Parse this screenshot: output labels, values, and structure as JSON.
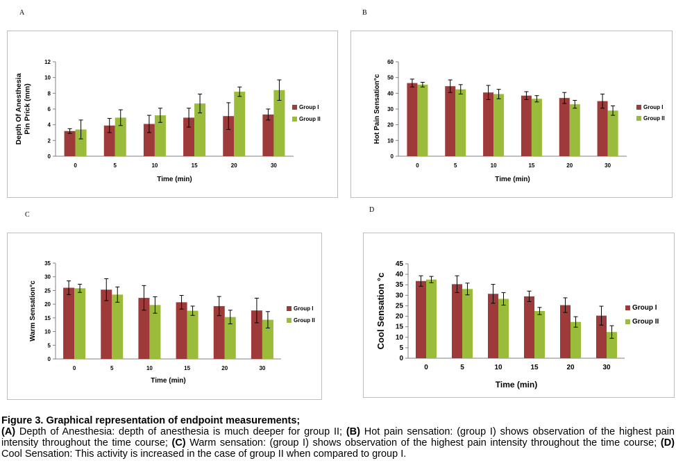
{
  "chart_data": [
    {
      "panel": "A",
      "type": "bar",
      "xlabel": "Time (min)",
      "ylabel_lines": [
        "Depth Of Anesthesia",
        "Pin Prick (mm)"
      ],
      "categories": [
        "0",
        "5",
        "10",
        "15",
        "20",
        "30"
      ],
      "ylim": [
        0,
        12
      ],
      "yticks": [
        0,
        2,
        4,
        6,
        8,
        10,
        12
      ],
      "legend_position": "right",
      "series": [
        {
          "name": "Group I",
          "color": "#9e3a3a",
          "values": [
            3.2,
            3.9,
            4.1,
            4.9,
            5.1,
            5.3
          ],
          "errors": [
            0.3,
            0.9,
            1.1,
            1.2,
            1.7,
            0.7
          ]
        },
        {
          "name": "Group II",
          "color": "#9bbb3a",
          "values": [
            3.4,
            4.9,
            5.2,
            6.7,
            8.2,
            8.4
          ],
          "errors": [
            1.2,
            1.0,
            0.9,
            1.2,
            0.6,
            1.3
          ]
        }
      ]
    },
    {
      "panel": "B",
      "type": "bar",
      "xlabel": "Time (min)",
      "ylabel_lines": [
        "Hot Pain Sensation°c"
      ],
      "categories": [
        "0",
        "5",
        "10",
        "15",
        "20",
        "30"
      ],
      "ylim": [
        0,
        60
      ],
      "yticks": [
        0,
        10,
        20,
        30,
        40,
        50,
        60
      ],
      "legend_position": "right",
      "series": [
        {
          "name": "Group I",
          "color": "#9e3a3a",
          "values": [
            46.5,
            44.5,
            40.5,
            38.5,
            37,
            35
          ],
          "errors": [
            2.5,
            4,
            4.5,
            2.5,
            3.5,
            4.5
          ]
        },
        {
          "name": "Group II",
          "color": "#9bbb3a",
          "values": [
            45.5,
            42.5,
            39.5,
            36.5,
            33,
            29
          ],
          "errors": [
            1.5,
            3,
            3,
            2,
            2.5,
            3
          ]
        }
      ]
    },
    {
      "panel": "C",
      "type": "bar",
      "xlabel": "Time (min)",
      "ylabel_lines": [
        "Warm Sensation°c"
      ],
      "categories": [
        "0",
        "5",
        "10",
        "15",
        "20",
        "30"
      ],
      "ylim": [
        0,
        35
      ],
      "yticks": [
        0,
        5,
        10,
        15,
        20,
        25,
        30,
        35
      ],
      "legend_position": "right",
      "series": [
        {
          "name": "Group I",
          "color": "#9e3a3a",
          "values": [
            26,
            25.3,
            22.3,
            20.7,
            19.3,
            17.7
          ],
          "errors": [
            2.5,
            4,
            4.5,
            2.5,
            3.5,
            4.5
          ]
        },
        {
          "name": "Group II",
          "color": "#9bbb3a",
          "values": [
            25.8,
            23.5,
            19.7,
            17.6,
            15.3,
            14.3
          ],
          "errors": [
            1.5,
            2.8,
            3,
            1.7,
            2.5,
            3
          ]
        }
      ]
    },
    {
      "panel": "D",
      "type": "bar",
      "xlabel": "Time (min)",
      "ylabel_lines": [
        "Cool Sensation °c"
      ],
      "categories": [
        "0",
        "5",
        "10",
        "15",
        "20",
        "30"
      ],
      "ylim": [
        0,
        45
      ],
      "yticks": [
        0,
        5,
        10,
        15,
        20,
        25,
        30,
        35,
        40,
        45
      ],
      "legend_position": "right",
      "series": [
        {
          "name": "Group I",
          "color": "#9e3a3a",
          "values": [
            36.8,
            35.3,
            30.7,
            29.5,
            25.3,
            20.3
          ],
          "errors": [
            2.5,
            4,
            4.5,
            2.5,
            3.5,
            4.5
          ]
        },
        {
          "name": "Group II",
          "color": "#9bbb3a",
          "values": [
            37.5,
            33,
            28.3,
            22.5,
            17.3,
            12.5
          ],
          "errors": [
            1.5,
            2.8,
            3,
            1.7,
            2.5,
            3
          ]
        }
      ]
    }
  ],
  "caption": {
    "title": "Figure 3. Graphical representation of endpoint measurements;",
    "parts": [
      {
        "bold": "(A)",
        "text": " Depth of Anesthesia: depth of anesthesia is much deeper for group II; "
      },
      {
        "bold": "(B)",
        "text": " Hot pain sensation: (group I) shows observation of the highest pain intensity throughout the time course; "
      },
      {
        "bold": "(C)",
        "text": " Warm sensation: (group I) shows observation of the highest pain intensity throughout the time course; "
      },
      {
        "bold": "(D)",
        "text": " Cool Sensation: This activity is increased in the case of group II when compared to group I."
      }
    ]
  }
}
